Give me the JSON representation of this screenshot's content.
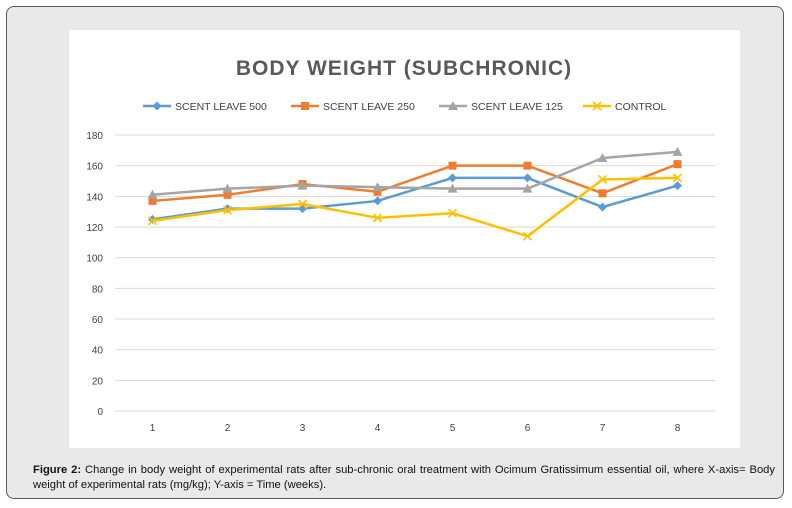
{
  "colors": {
    "scent_leave_500": "#5b9bd5",
    "scent_leave_250": "#ed7d31",
    "scent_leave_125": "#a5a5a5",
    "control": "#ffc000",
    "gridline": "#d9d9d9",
    "axis_text": "#404040",
    "title_text": "#595959"
  },
  "chart_data": {
    "type": "line",
    "title": "BODY WEIGHT (SUBCHRONIC)",
    "xlabel": "",
    "ylabel": "",
    "categories": [
      "1",
      "2",
      "3",
      "4",
      "5",
      "6",
      "7",
      "8"
    ],
    "y_ticks": [
      "0",
      "20",
      "40",
      "60",
      "80",
      "100",
      "120",
      "140",
      "160",
      "180"
    ],
    "ylim": [
      0,
      180
    ],
    "grid": true,
    "legend_position": "top",
    "series": [
      {
        "name": "SCENT LEAVE 500",
        "marker": "diamond",
        "color": "#5b9bd5",
        "values": [
          125,
          132,
          132,
          137,
          152,
          152,
          133,
          147
        ]
      },
      {
        "name": "SCENT LEAVE 250",
        "marker": "square",
        "color": "#ed7d31",
        "values": [
          137,
          141,
          148,
          143,
          160,
          160,
          142,
          161
        ]
      },
      {
        "name": "SCENT LEAVE 125",
        "marker": "triangle",
        "color": "#a5a5a5",
        "values": [
          141,
          145,
          147,
          146,
          145,
          145,
          165,
          169
        ]
      },
      {
        "name": "CONTROL",
        "marker": "x",
        "color": "#ffc000",
        "values": [
          124,
          131,
          135,
          126,
          129,
          114,
          151,
          152
        ]
      }
    ]
  },
  "caption": {
    "label": "Figure 2:",
    "text": " Change in body weight of experimental rats after sub-chronic oral treatment with Ocimum Gratissimum essential oil, where X-axis= Body weight of experimental rats (mg/kg); Y-axis = Time (weeks)."
  }
}
